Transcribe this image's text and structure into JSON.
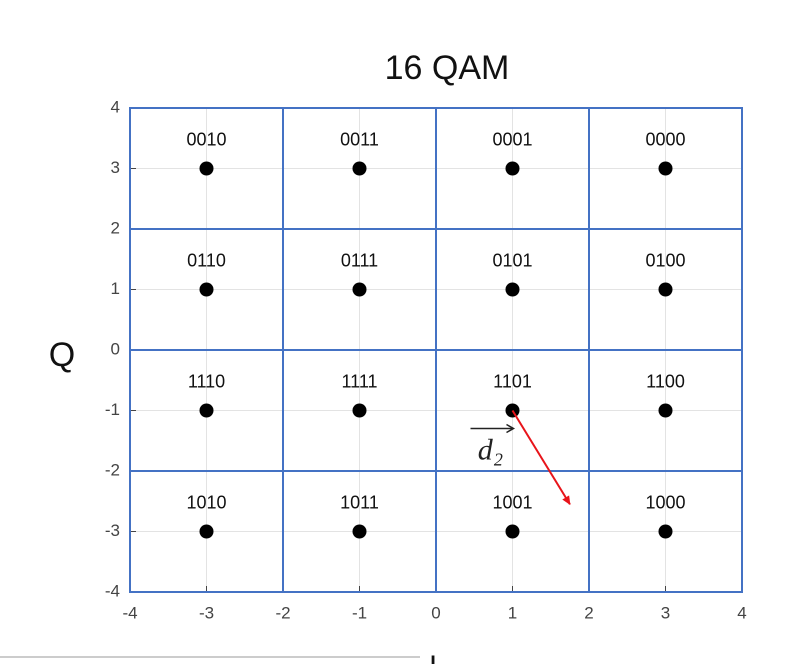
{
  "chart_data": {
    "type": "scatter",
    "title": "16 QAM",
    "x_label": "I",
    "y_label": "Q",
    "x": [
      -3,
      -1,
      1,
      3,
      -3,
      -1,
      1,
      3,
      -3,
      -1,
      1,
      3,
      -3,
      -1,
      1,
      3
    ],
    "values": [
      3,
      3,
      3,
      3,
      1,
      1,
      1,
      1,
      -1,
      -1,
      -1,
      -1,
      -3,
      -3,
      -3,
      -3
    ],
    "point_labels": [
      "0010",
      "0011",
      "0001",
      "0000",
      "0110",
      "0111",
      "0101",
      "0100",
      "1110",
      "1111",
      "1101",
      "1100",
      "1010",
      "1011",
      "1001",
      "1000"
    ],
    "color": "#000000",
    "xlim": [
      -4,
      4
    ],
    "ylim": [
      -4,
      4
    ],
    "xticks": [
      -4,
      -3,
      -2,
      -1,
      0,
      1,
      2,
      3,
      4
    ],
    "yticks": [
      -4,
      -3,
      -2,
      -1,
      0,
      1,
      2,
      3,
      4
    ],
    "grid": true,
    "boundaries": [
      -2,
      0,
      2
    ],
    "boundary_color": "#4472c4",
    "arrow": {
      "from": [
        1,
        -1
      ],
      "to": [
        1.75,
        -2.55
      ],
      "color": "#e8141a",
      "label": "d₂"
    }
  }
}
